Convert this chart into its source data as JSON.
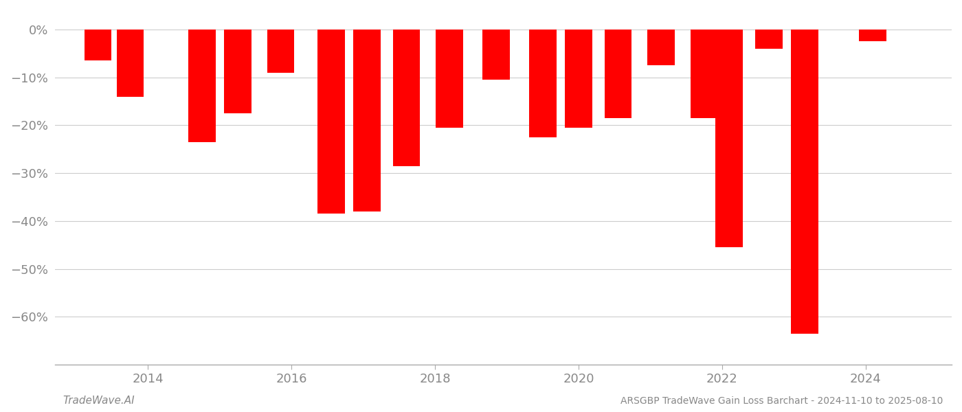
{
  "positions": [
    2013.3,
    2013.75,
    2014.75,
    2015.25,
    2015.85,
    2016.55,
    2017.05,
    2017.6,
    2018.2,
    2018.85,
    2019.5,
    2020.0,
    2020.55,
    2021.15,
    2021.75,
    2022.1,
    2022.65,
    2023.15,
    2024.1
  ],
  "values": [
    -6.5,
    -14.0,
    -23.5,
    -17.5,
    -9.0,
    -38.5,
    -38.0,
    -28.5,
    -20.5,
    -10.5,
    -22.5,
    -20.5,
    -18.5,
    -7.5,
    -18.5,
    -45.5,
    -4.0,
    -63.5,
    -2.5
  ],
  "bar_color": "#ff0000",
  "ylim": [
    -70,
    4
  ],
  "yticks": [
    0,
    -10,
    -20,
    -30,
    -40,
    -50,
    -60
  ],
  "ytick_labels": [
    "0%",
    "−10%",
    "−20%",
    "−30%",
    "−40%",
    "−50%",
    "−60%"
  ],
  "xtick_labels": [
    "2014",
    "2016",
    "2018",
    "2020",
    "2022",
    "2024"
  ],
  "xtick_positions": [
    2014,
    2016,
    2018,
    2020,
    2022,
    2024
  ],
  "footer_left": "TradeWave.AI",
  "footer_right": "ARSGBP TradeWave Gain Loss Barchart - 2024-11-10 to 2025-08-10",
  "background_color": "#ffffff",
  "grid_color": "#cccccc",
  "bar_width": 0.38
}
